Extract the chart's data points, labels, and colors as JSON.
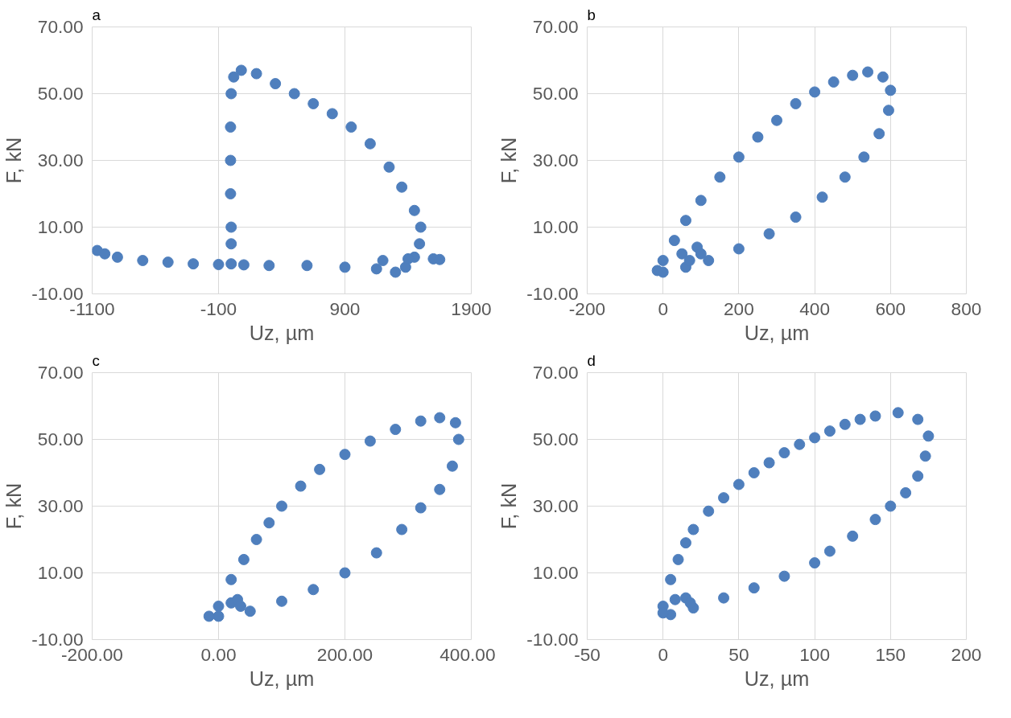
{
  "chart_data": [
    {
      "type": "scatter",
      "title": "a",
      "xlabel": "Uz, µm",
      "ylabel": "F, kN",
      "marker": "circle",
      "grid": true,
      "xlim": [
        -1100,
        1900
      ],
      "xticks": [
        -1100,
        -100,
        900,
        1900
      ],
      "ylim": [
        -10,
        70
      ],
      "yticks": [
        {
          "value": -10,
          "label": "-10.00"
        },
        {
          "value": 10,
          "label": "10.00"
        },
        {
          "value": 30,
          "label": "30.00"
        },
        {
          "value": 50,
          "label": "50.00"
        },
        {
          "value": 70,
          "label": "70.00"
        }
      ],
      "series": [
        {
          "color": "#4f7fbd",
          "x": [
            -1060,
            -1000,
            -900,
            -700,
            -500,
            -300,
            -100,
            0,
            0,
            0,
            -5,
            -5,
            -5,
            0,
            20,
            80,
            200,
            350,
            500,
            650,
            800,
            950,
            1100,
            1250,
            1350,
            1450,
            1500,
            1490,
            1450,
            1380,
            1300,
            1150,
            900,
            600,
            300,
            100,
            1200,
            1400,
            1600,
            1650
          ],
          "values": [
            3,
            2,
            1,
            0,
            -0.5,
            -1,
            -1.2,
            -1,
            5,
            10,
            20,
            30,
            40,
            50,
            55,
            57,
            56,
            53,
            50,
            47,
            44,
            40,
            35,
            28,
            22,
            15,
            10,
            5,
            1,
            -2,
            -3.5,
            -2.5,
            -2,
            -1.5,
            -1.5,
            -1.3,
            0,
            0.5,
            0.5,
            0.3
          ]
        }
      ]
    },
    {
      "type": "scatter",
      "title": "b",
      "xlabel": "Uz, µm",
      "ylabel": "F, kN",
      "marker": "circle",
      "grid": true,
      "xlim": [
        -200,
        800
      ],
      "xticks": [
        -200,
        0,
        200,
        400,
        600,
        800
      ],
      "ylim": [
        -10,
        70
      ],
      "yticks": [
        {
          "value": -10,
          "label": "-10.00"
        },
        {
          "value": 10,
          "label": "10.00"
        },
        {
          "value": 30,
          "label": "30.00"
        },
        {
          "value": 50,
          "label": "50.00"
        },
        {
          "value": 70,
          "label": "70.00"
        }
      ],
      "series": [
        {
          "color": "#4f7fbd",
          "x": [
            0,
            30,
            60,
            100,
            150,
            200,
            250,
            300,
            350,
            400,
            450,
            500,
            540,
            580,
            600,
            595,
            570,
            530,
            480,
            420,
            350,
            280,
            200,
            120,
            60,
            0,
            -15,
            50,
            90,
            100,
            70
          ],
          "values": [
            0,
            6,
            12,
            18,
            25,
            31,
            37,
            42,
            47,
            50.5,
            53.5,
            55.5,
            56.5,
            55,
            51,
            45,
            38,
            31,
            25,
            19,
            13,
            8,
            3.5,
            0,
            -2,
            -3.5,
            -3,
            2,
            4,
            2,
            0
          ]
        }
      ]
    },
    {
      "type": "scatter",
      "title": "c",
      "xlabel": "Uz, µm",
      "ylabel": "F, kN",
      "marker": "circle",
      "grid": true,
      "xlim": [
        -200,
        400
      ],
      "xticks": [
        {
          "value": -200,
          "label": "-200.00"
        },
        {
          "value": 0,
          "label": "0.00"
        },
        {
          "value": 200,
          "label": "200.00"
        },
        {
          "value": 400,
          "label": "400.00"
        }
      ],
      "ylim": [
        -10,
        70
      ],
      "yticks": [
        {
          "value": -10,
          "label": "-10.00"
        },
        {
          "value": 10,
          "label": "10.00"
        },
        {
          "value": 30,
          "label": "30.00"
        },
        {
          "value": 50,
          "label": "50.00"
        },
        {
          "value": 70,
          "label": "70.00"
        }
      ],
      "series": [
        {
          "color": "#4f7fbd",
          "x": [
            0,
            20,
            40,
            60,
            80,
            100,
            130,
            160,
            200,
            240,
            280,
            320,
            350,
            375,
            380,
            370,
            350,
            320,
            290,
            250,
            200,
            150,
            100,
            50,
            0,
            -15,
            20,
            30,
            35
          ],
          "values": [
            0,
            8,
            14,
            20,
            25,
            30,
            36,
            41,
            45.5,
            49.5,
            53,
            55.5,
            56.5,
            55,
            50,
            42,
            35,
            29.5,
            23,
            16,
            10,
            5,
            1.5,
            -1.5,
            -3,
            -3,
            1,
            2,
            0
          ]
        }
      ]
    },
    {
      "type": "scatter",
      "title": "d",
      "xlabel": "Uz, µm",
      "ylabel": "F, kN",
      "marker": "circle",
      "grid": true,
      "xlim": [
        -50,
        200
      ],
      "xticks": [
        -50,
        0,
        50,
        100,
        150,
        200
      ],
      "ylim": [
        -10,
        70
      ],
      "yticks": [
        {
          "value": -10,
          "label": "-10.00"
        },
        {
          "value": 10,
          "label": "10.00"
        },
        {
          "value": 30,
          "label": "30.00"
        },
        {
          "value": 50,
          "label": "50.00"
        },
        {
          "value": 70,
          "label": "70.00"
        }
      ],
      "series": [
        {
          "color": "#4f7fbd",
          "x": [
            0,
            5,
            10,
            15,
            20,
            30,
            40,
            50,
            60,
            70,
            80,
            90,
            100,
            110,
            120,
            130,
            140,
            155,
            168,
            175,
            173,
            168,
            160,
            150,
            140,
            125,
            110,
            100,
            80,
            60,
            40,
            20,
            5,
            0,
            8,
            15,
            18
          ],
          "values": [
            0,
            8,
            14,
            19,
            23,
            28.5,
            32.5,
            36.5,
            40,
            43,
            46,
            48.5,
            50.5,
            52.5,
            54.5,
            56,
            57,
            58,
            56,
            51,
            45,
            39,
            34,
            30,
            26,
            21,
            16.5,
            13,
            9,
            5.5,
            2.5,
            -0.5,
            -2.5,
            -2,
            2,
            2.5,
            1
          ]
        }
      ]
    }
  ]
}
